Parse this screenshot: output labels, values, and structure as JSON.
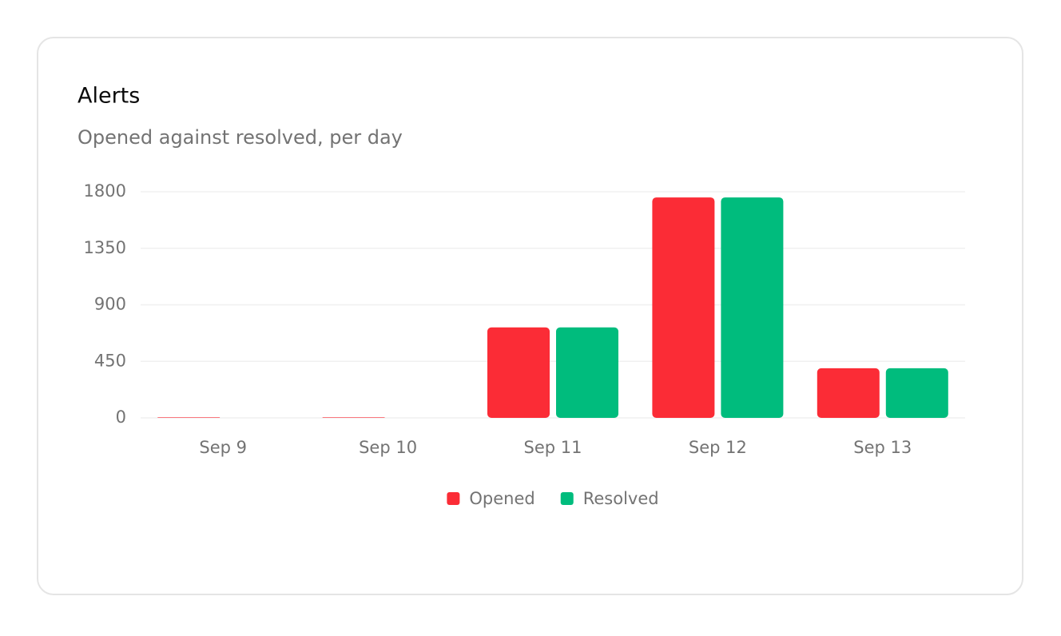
{
  "chart_data": {
    "type": "bar",
    "title": "Alerts",
    "subtitle": "Opened against resolved, per day",
    "categories": [
      "Sep 9",
      "Sep 10",
      "Sep 11",
      "Sep 12",
      "Sep 13"
    ],
    "series": [
      {
        "name": "Opened",
        "color": "#fb2c36",
        "values": [
          4,
          4,
          720,
          1755,
          395
        ]
      },
      {
        "name": "Resolved",
        "color": "#00bc7d",
        "values": [
          0,
          0,
          720,
          1755,
          395
        ]
      }
    ],
    "ylim": [
      0,
      1800
    ],
    "yticks": [
      0,
      450,
      900,
      1350,
      1800
    ],
    "grid": true
  }
}
